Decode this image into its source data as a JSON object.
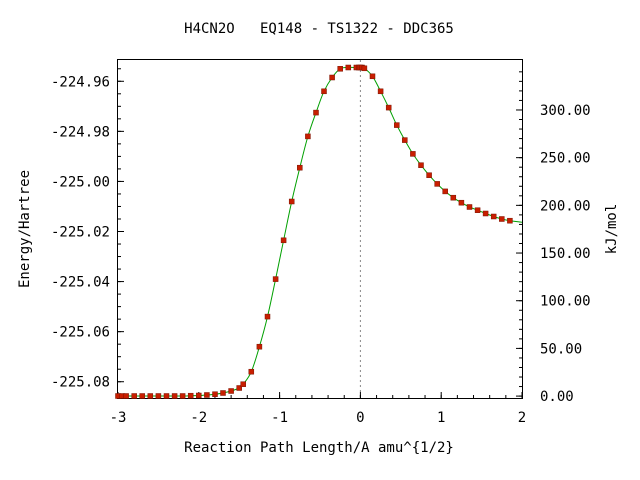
{
  "chart_data": {
    "type": "line",
    "title": "H4CN2O   EQ148 - TS1322 - DDC365",
    "xlabel": "Reaction Path Length/A amu^{1/2}",
    "ylabel": "Energy/Hartree",
    "y2label": "kJ/mol",
    "xlim": [
      -3.0,
      2.0
    ],
    "ylim": [
      -225.0865,
      -224.9515
    ],
    "y2lim": [
      -2.0,
      352.4
    ],
    "grid": false,
    "legend": "none",
    "reference_line_x": 0,
    "x_ticks": [
      -3,
      -2,
      -1,
      0,
      1,
      2
    ],
    "x_tick_labels": [
      "-3",
      "-2",
      "-1",
      "0",
      "1",
      "2"
    ],
    "y_ticks": [
      -224.96,
      -224.98,
      -225.0,
      -225.02,
      -225.04,
      -225.06,
      -225.08
    ],
    "y_tick_labels": [
      "-224.96",
      "-224.98",
      "-225.00",
      "-225.02",
      "-225.04",
      "-225.06",
      "-225.08"
    ],
    "y2_ticks": [
      0,
      50,
      100,
      150,
      200,
      250,
      300
    ],
    "y2_tick_labels": [
      "0.00",
      "50.00",
      "100.00",
      "150.00",
      "200.00",
      "250.00",
      "300.00"
    ],
    "series": [
      {
        "line_color": "#00a000",
        "marker_color": "#c81e00",
        "x": [
          -3.0,
          -2.95,
          -2.9,
          -2.8,
          -2.7,
          -2.6,
          -2.5,
          -2.4,
          -2.3,
          -2.2,
          -2.1,
          -2.0,
          -1.9,
          -1.8,
          -1.7,
          -1.6,
          -1.5,
          -1.45,
          -1.35,
          -1.25,
          -1.15,
          -1.05,
          -0.95,
          -0.85,
          -0.75,
          -0.65,
          -0.55,
          -0.45,
          -0.35,
          -0.25,
          -0.15,
          -0.05,
          -0.02,
          0.0,
          0.02,
          0.05,
          0.15,
          0.25,
          0.35,
          0.45,
          0.55,
          0.65,
          0.75,
          0.85,
          0.95,
          1.05,
          1.15,
          1.25,
          1.35,
          1.45,
          1.55,
          1.65,
          1.75,
          1.85
        ],
        "y": [
          -225.0857,
          -225.0857,
          -225.0857,
          -225.0857,
          -225.0857,
          -225.0857,
          -225.0857,
          -225.0857,
          -225.0857,
          -225.0857,
          -225.0856,
          -225.0855,
          -225.0853,
          -225.085,
          -225.0845,
          -225.0837,
          -225.0825,
          -225.081,
          -225.076,
          -225.066,
          -225.054,
          -225.039,
          -225.0235,
          -225.008,
          -224.9945,
          -224.982,
          -224.9725,
          -224.964,
          -224.9585,
          -224.955,
          -224.9545,
          -224.9545,
          -224.9545,
          -224.9545,
          -224.9545,
          -224.9548,
          -224.958,
          -224.964,
          -224.9705,
          -224.9775,
          -224.9835,
          -224.989,
          -224.9935,
          -224.9975,
          -225.001,
          -225.004,
          -225.0065,
          -225.0085,
          -225.0102,
          -225.0115,
          -225.0128,
          -225.014,
          -225.015,
          -225.0157
        ]
      }
    ]
  }
}
